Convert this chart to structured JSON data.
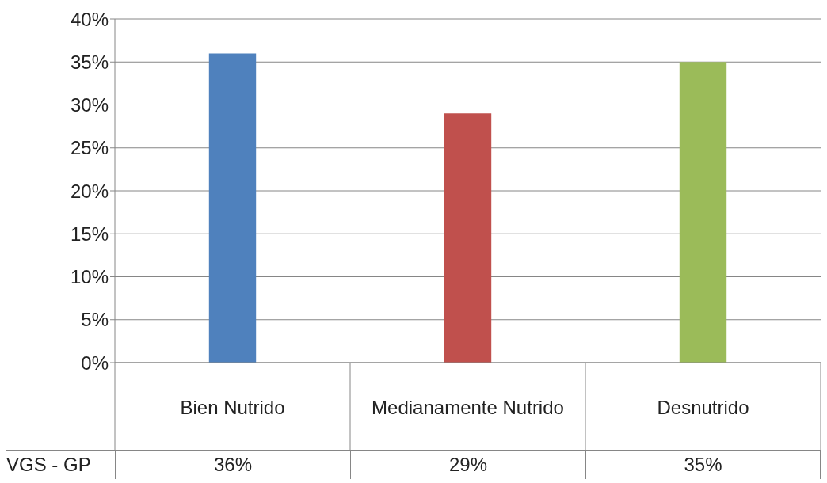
{
  "chart_data": {
    "type": "bar",
    "categories": [
      "Bien Nutrido",
      "Medianamente Nutrido",
      "Desnutrido"
    ],
    "series": [
      {
        "name": "VGS - GP",
        "values": [
          36,
          29,
          35
        ],
        "colors": [
          "#4f81bd",
          "#c0504d",
          "#9bbb59"
        ],
        "value_labels": [
          "36%",
          "29%",
          "35%"
        ]
      }
    ],
    "ylim": [
      0,
      40
    ],
    "yticks": [
      {
        "value": 0,
        "label": "0%"
      },
      {
        "value": 5,
        "label": "5%"
      },
      {
        "value": 10,
        "label": "10%"
      },
      {
        "value": 15,
        "label": "15%"
      },
      {
        "value": 20,
        "label": "20%"
      },
      {
        "value": 25,
        "label": "25%"
      },
      {
        "value": 30,
        "label": "30%"
      },
      {
        "value": 35,
        "label": "35%"
      },
      {
        "value": 40,
        "label": "40%"
      }
    ],
    "grid": "y"
  }
}
